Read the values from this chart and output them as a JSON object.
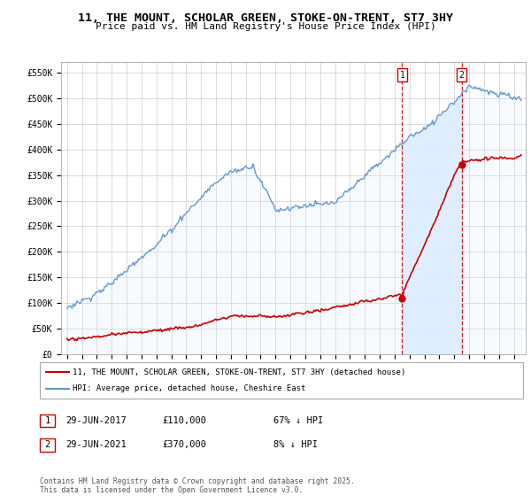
{
  "title": "11, THE MOUNT, SCHOLAR GREEN, STOKE-ON-TRENT, ST7 3HY",
  "subtitle": "Price paid vs. HM Land Registry's House Price Index (HPI)",
  "legend_label_red": "11, THE MOUNT, SCHOLAR GREEN, STOKE-ON-TRENT, ST7 3HY (detached house)",
  "legend_label_blue": "HPI: Average price, detached house, Cheshire East",
  "footer": "Contains HM Land Registry data © Crown copyright and database right 2025.\nThis data is licensed under the Open Government Licence v3.0.",
  "transaction1_label": "1",
  "transaction1_date": "29-JUN-2017",
  "transaction1_price": "£110,000",
  "transaction1_hpi": "67% ↓ HPI",
  "transaction2_label": "2",
  "transaction2_date": "29-JUN-2021",
  "transaction2_price": "£370,000",
  "transaction2_hpi": "8% ↓ HPI",
  "color_red": "#cc0000",
  "color_blue": "#6699cc",
  "color_blue_fill": "#ddeeff",
  "vline_color": "#cc0000",
  "ylim": [
    0,
    570000
  ],
  "yticks": [
    0,
    50000,
    100000,
    150000,
    200000,
    250000,
    300000,
    350000,
    400000,
    450000,
    500000,
    550000
  ],
  "ytick_labels": [
    "£0",
    "£50K",
    "£100K",
    "£150K",
    "£200K",
    "£250K",
    "£300K",
    "£350K",
    "£400K",
    "£450K",
    "£500K",
    "£550K"
  ],
  "transaction1_x": 2017.5,
  "transaction2_x": 2021.5,
  "transaction1_y_red": 110000,
  "transaction2_y_red": 370000,
  "xlim_left": 1994.6,
  "xlim_right": 2025.8
}
